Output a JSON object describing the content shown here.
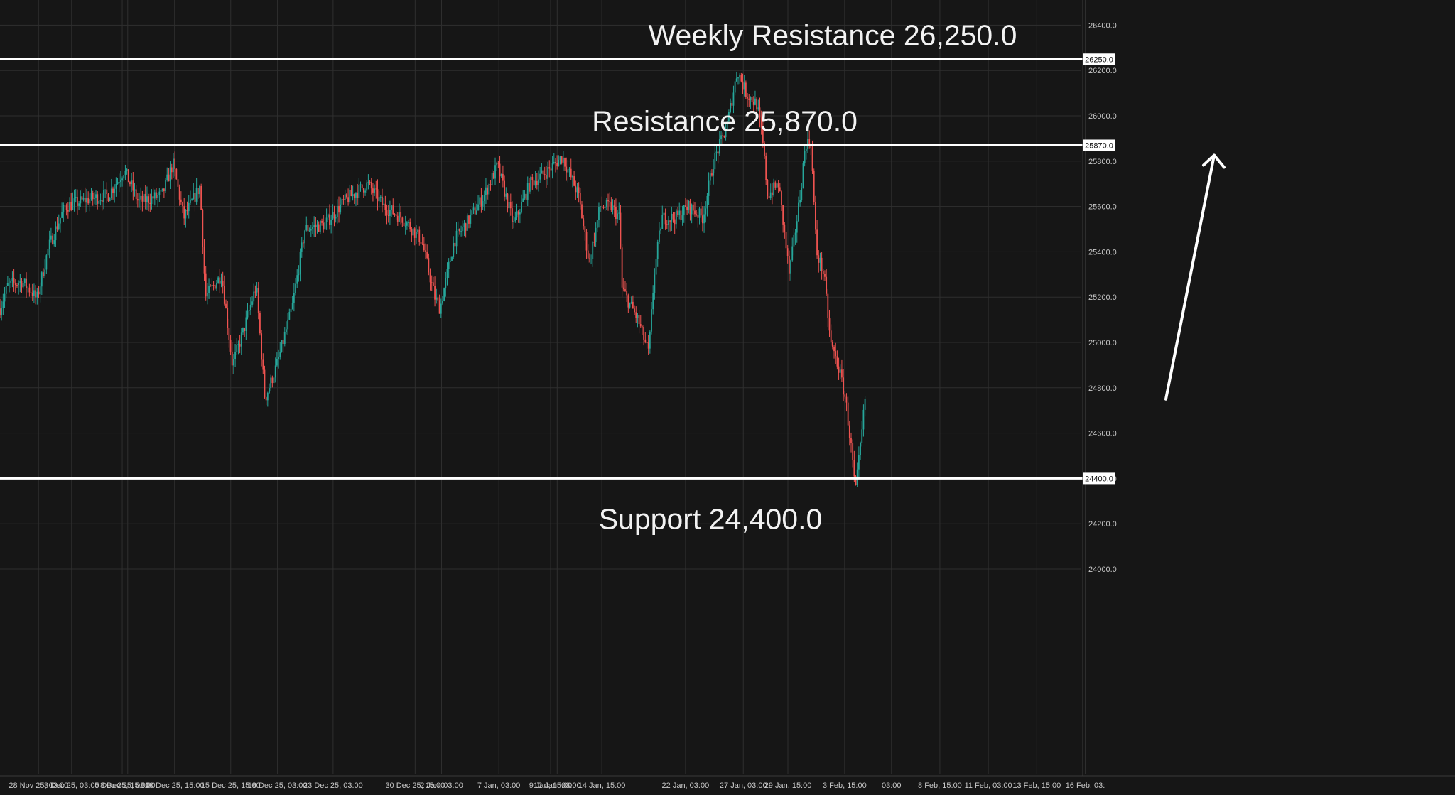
{
  "chart_data": {
    "type": "candlestick",
    "title": "",
    "xlabel": "",
    "ylabel": "",
    "ylim": [
      23900,
      26500
    ],
    "grid": true,
    "colors": {
      "background": "#161616",
      "grid": "#2f2f2f",
      "up": "#26a69a",
      "down": "#ef5350",
      "level_line": "#ffffff",
      "text": "#c8c8c8"
    },
    "y_ticks": [
      {
        "value": 24000,
        "label": "24000.0"
      },
      {
        "value": 24200,
        "label": "24200.0"
      },
      {
        "value": 24400,
        "label": "24400.0"
      },
      {
        "value": 24600,
        "label": "24600.0"
      },
      {
        "value": 24800,
        "label": "24800.0"
      },
      {
        "value": 25000,
        "label": "25000.0"
      },
      {
        "value": 25200,
        "label": "25200.0"
      },
      {
        "value": 25400,
        "label": "25400.0"
      },
      {
        "value": 25600,
        "label": "25600.0"
      },
      {
        "value": 25800,
        "label": "25800.0"
      },
      {
        "value": 26000,
        "label": "26000.0"
      },
      {
        "value": 26200,
        "label": "26200.0"
      },
      {
        "value": 26400,
        "label": "26400.0"
      }
    ],
    "x_ticks": [
      "28 Nov 25, 03:00",
      "3 Dec 25, 03:00",
      "5 Dec 25, 15:00",
      "8 Dec 25, 03:00",
      "10 Dec 25, 15:00",
      "15 Dec 25, 15:00",
      "18 Dec 25, 03:00",
      "23 Dec 25, 03:00",
      "30 Dec 25, 15:00",
      "2 Jan, 03:00",
      "7 Jan, 03:00",
      "9 Jan, 15:00",
      "12 Jan, 03:00",
      "14 Jan, 15:00",
      "22 Jan, 03:00",
      "27 Jan, 03:00",
      "29 Jan, 15:00",
      "3 Feb, 15:00",
      "03:00",
      "8 Feb, 15:00",
      "11 Feb, 03:00",
      "13 Feb, 15:00",
      "16 Feb, 03:"
    ],
    "levels": [
      {
        "name": "Weekly Resistance",
        "value": 26250,
        "label": "Weekly Resistance 26,250.0",
        "badge": "26250.0"
      },
      {
        "name": "Resistance",
        "value": 25870,
        "label": "Resistance 25,870.0",
        "badge": "25870.0"
      },
      {
        "name": "Support",
        "value": 24400,
        "label": "Support 24,400.0",
        "badge": "24400.0"
      }
    ],
    "projection": {
      "from": 24750,
      "to": 25870
    },
    "price_path": [
      {
        "x": 0,
        "y": 25150
      },
      {
        "x": 0.007,
        "y": 25250
      },
      {
        "x": 0.02,
        "y": 25270
      },
      {
        "x": 0.03,
        "y": 25220
      },
      {
        "x": 0.034,
        "y": 25190
      },
      {
        "x": 0.045,
        "y": 25420
      },
      {
        "x": 0.06,
        "y": 25600
      },
      {
        "x": 0.08,
        "y": 25630
      },
      {
        "x": 0.1,
        "y": 25650
      },
      {
        "x": 0.115,
        "y": 25760
      },
      {
        "x": 0.128,
        "y": 25620
      },
      {
        "x": 0.15,
        "y": 25650
      },
      {
        "x": 0.16,
        "y": 25790
      },
      {
        "x": 0.17,
        "y": 25550
      },
      {
        "x": 0.185,
        "y": 25690
      },
      {
        "x": 0.19,
        "y": 25200
      },
      {
        "x": 0.205,
        "y": 25300
      },
      {
        "x": 0.215,
        "y": 24900
      },
      {
        "x": 0.225,
        "y": 25050
      },
      {
        "x": 0.237,
        "y": 25250
      },
      {
        "x": 0.245,
        "y": 24750
      },
      {
        "x": 0.256,
        "y": 24900
      },
      {
        "x": 0.27,
        "y": 25150
      },
      {
        "x": 0.282,
        "y": 25500
      },
      {
        "x": 0.3,
        "y": 25520
      },
      {
        "x": 0.32,
        "y": 25630
      },
      {
        "x": 0.34,
        "y": 25700
      },
      {
        "x": 0.355,
        "y": 25600
      },
      {
        "x": 0.372,
        "y": 25550
      },
      {
        "x": 0.39,
        "y": 25450
      },
      {
        "x": 0.402,
        "y": 25200
      },
      {
        "x": 0.407,
        "y": 25150
      },
      {
        "x": 0.42,
        "y": 25450
      },
      {
        "x": 0.435,
        "y": 25550
      },
      {
        "x": 0.448,
        "y": 25650
      },
      {
        "x": 0.46,
        "y": 25780
      },
      {
        "x": 0.475,
        "y": 25520
      },
      {
        "x": 0.49,
        "y": 25700
      },
      {
        "x": 0.505,
        "y": 25750
      },
      {
        "x": 0.52,
        "y": 25820
      },
      {
        "x": 0.535,
        "y": 25650
      },
      {
        "x": 0.545,
        "y": 25350
      },
      {
        "x": 0.555,
        "y": 25600
      },
      {
        "x": 0.565,
        "y": 25600
      },
      {
        "x": 0.573,
        "y": 25550
      },
      {
        "x": 0.575,
        "y": 25240
      },
      {
        "x": 0.59,
        "y": 25100
      },
      {
        "x": 0.6,
        "y": 24950
      },
      {
        "x": 0.605,
        "y": 25300
      },
      {
        "x": 0.612,
        "y": 25550
      },
      {
        "x": 0.625,
        "y": 25550
      },
      {
        "x": 0.637,
        "y": 25600
      },
      {
        "x": 0.65,
        "y": 25550
      },
      {
        "x": 0.66,
        "y": 25800
      },
      {
        "x": 0.672,
        "y": 25950
      },
      {
        "x": 0.682,
        "y": 26200
      },
      {
        "x": 0.69,
        "y": 26100
      },
      {
        "x": 0.7,
        "y": 26050
      },
      {
        "x": 0.705,
        "y": 25900
      },
      {
        "x": 0.71,
        "y": 25650
      },
      {
        "x": 0.72,
        "y": 25700
      },
      {
        "x": 0.73,
        "y": 25300
      },
      {
        "x": 0.74,
        "y": 25650
      },
      {
        "x": 0.745,
        "y": 25880
      },
      {
        "x": 0.75,
        "y": 25880
      },
      {
        "x": 0.755,
        "y": 25400
      },
      {
        "x": 0.762,
        "y": 25300
      },
      {
        "x": 0.768,
        "y": 25000
      },
      {
        "x": 0.775,
        "y": 24900
      },
      {
        "x": 0.782,
        "y": 24750
      },
      {
        "x": 0.788,
        "y": 24500
      },
      {
        "x": 0.791,
        "y": 24330
      },
      {
        "x": 0.796,
        "y": 24550
      },
      {
        "x": 0.8,
        "y": 24750
      }
    ]
  }
}
